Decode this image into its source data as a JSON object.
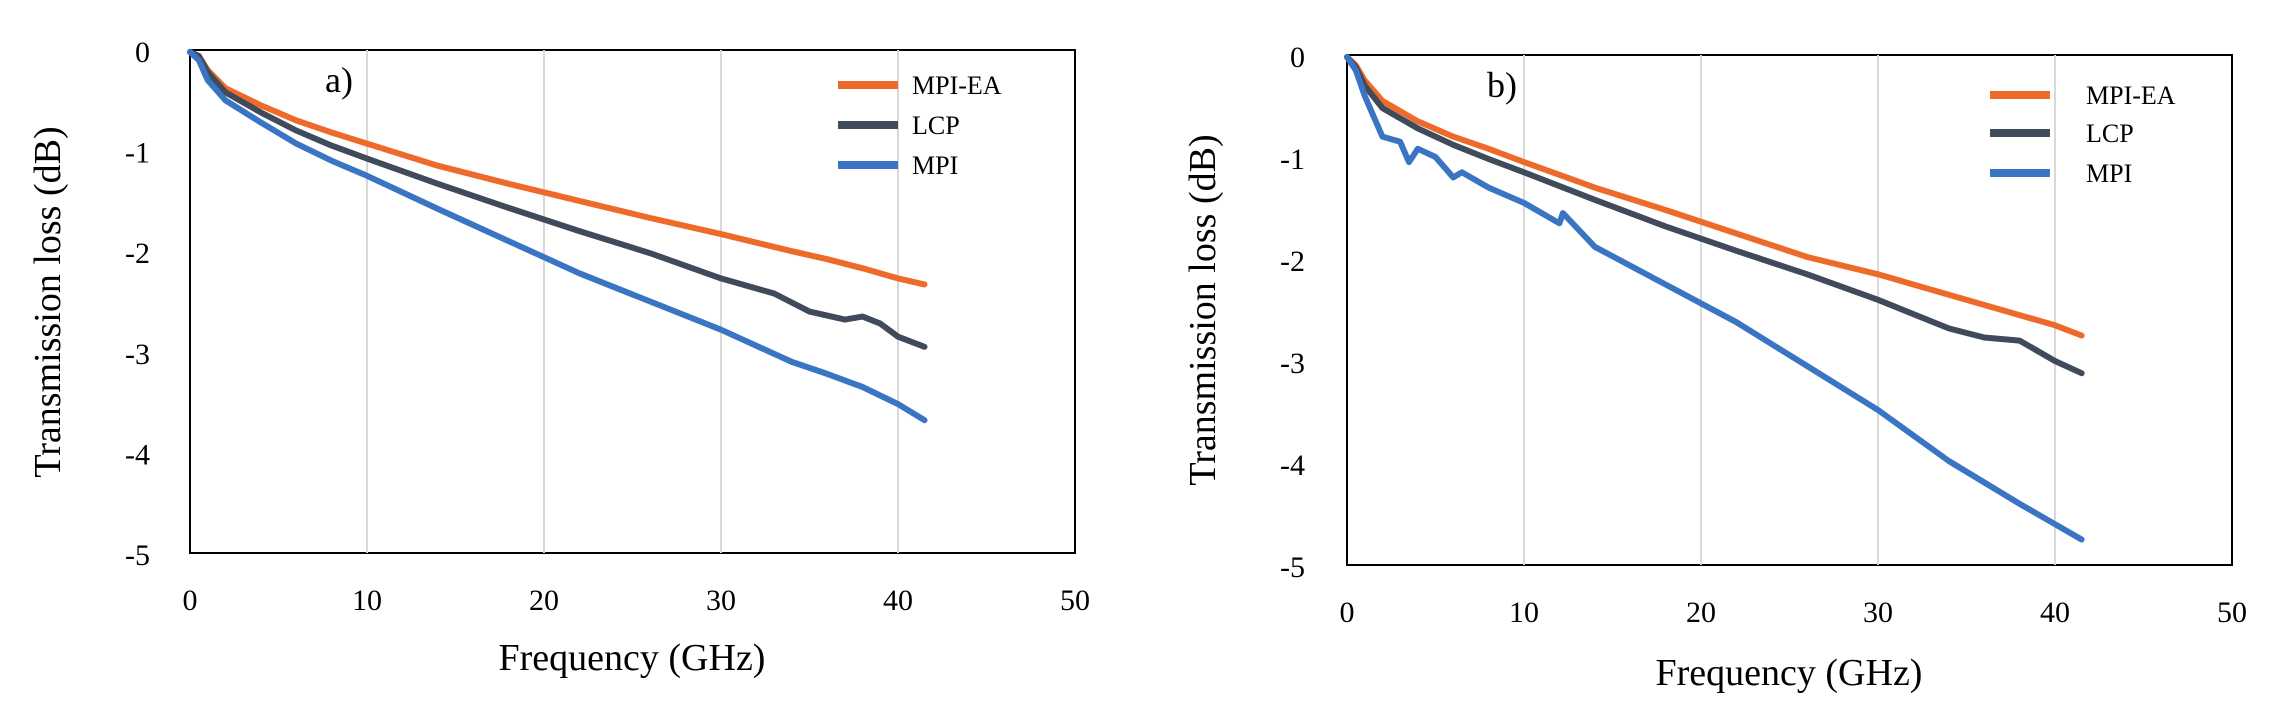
{
  "chart_data": [
    {
      "type": "line",
      "panel_label": "a)",
      "xlabel": "Frequency (GHz)",
      "ylabel": "Transmission loss (dB)",
      "xlim": [
        0,
        50
      ],
      "ylim": [
        -5,
        0
      ],
      "x_ticks": [
        "0",
        "10",
        "20",
        "30",
        "40",
        "50"
      ],
      "y_ticks": [
        "0",
        "-1",
        "-2",
        "-3",
        "-4",
        "-5"
      ],
      "grid": "vertical",
      "legend_position": "top-right",
      "series": [
        {
          "name": "MPI-EA",
          "color": "#ed6a2a",
          "x": [
            0,
            0.5,
            1,
            2,
            4,
            6,
            8,
            10,
            14,
            18,
            22,
            26,
            30,
            34,
            36,
            38,
            40,
            41.5
          ],
          "y": [
            -0.02,
            -0.06,
            -0.2,
            -0.38,
            -0.55,
            -0.7,
            -0.82,
            -0.93,
            -1.15,
            -1.33,
            -1.5,
            -1.67,
            -1.83,
            -2.0,
            -2.08,
            -2.17,
            -2.27,
            -2.33
          ]
        },
        {
          "name": "LCP",
          "color": "#3f4a5a",
          "x": [
            0,
            0.5,
            1,
            2,
            4,
            6,
            8,
            10,
            14,
            18,
            22,
            26,
            30,
            33,
            35,
            37,
            38,
            39,
            40,
            41.5
          ],
          "y": [
            -0.02,
            -0.06,
            -0.22,
            -0.42,
            -0.62,
            -0.8,
            -0.95,
            -1.08,
            -1.33,
            -1.57,
            -1.8,
            -2.02,
            -2.27,
            -2.42,
            -2.6,
            -2.68,
            -2.65,
            -2.72,
            -2.85,
            -2.95
          ]
        },
        {
          "name": "MPI",
          "color": "#3a75c4",
          "x": [
            0,
            0.5,
            1,
            2,
            4,
            6,
            8,
            10,
            14,
            18,
            22,
            26,
            30,
            34,
            36,
            38,
            40,
            41.5
          ],
          "y": [
            -0.02,
            -0.1,
            -0.3,
            -0.5,
            -0.72,
            -0.93,
            -1.1,
            -1.25,
            -1.58,
            -1.9,
            -2.22,
            -2.5,
            -2.78,
            -3.1,
            -3.22,
            -3.35,
            -3.52,
            -3.68
          ]
        }
      ]
    },
    {
      "type": "line",
      "panel_label": "b)",
      "xlabel": "Frequency (GHz)",
      "ylabel": "Transmission loss (dB)",
      "xlim": [
        0,
        50
      ],
      "ylim": [
        -5,
        0
      ],
      "x_ticks": [
        "0",
        "10",
        "20",
        "30",
        "40",
        "50"
      ],
      "y_ticks": [
        "0",
        "-1",
        "-2",
        "-3",
        "-4",
        "-5"
      ],
      "grid": "vertical",
      "legend_position": "top-right",
      "series": [
        {
          "name": "MPI-EA",
          "color": "#ed6a2a",
          "x": [
            0,
            0.5,
            1,
            2,
            4,
            6,
            8,
            10,
            14,
            18,
            22,
            26,
            30,
            34,
            38,
            40,
            41.5
          ],
          "y": [
            -0.02,
            -0.1,
            -0.25,
            -0.45,
            -0.65,
            -0.8,
            -0.92,
            -1.05,
            -1.3,
            -1.52,
            -1.75,
            -1.98,
            -2.15,
            -2.35,
            -2.55,
            -2.65,
            -2.75
          ]
        },
        {
          "name": "LCP",
          "color": "#3f4a5a",
          "x": [
            0,
            0.5,
            1,
            2,
            4,
            6,
            8,
            10,
            14,
            18,
            22,
            26,
            30,
            34,
            36,
            38,
            40,
            41.5
          ],
          "y": [
            -0.02,
            -0.12,
            -0.3,
            -0.52,
            -0.72,
            -0.88,
            -1.02,
            -1.15,
            -1.42,
            -1.68,
            -1.92,
            -2.15,
            -2.4,
            -2.68,
            -2.77,
            -2.8,
            -3.0,
            -3.12
          ]
        },
        {
          "name": "MPI",
          "color": "#3a75c4",
          "x": [
            0,
            0.5,
            1,
            1.5,
            2,
            3,
            3.5,
            4,
            5,
            6,
            6.5,
            8,
            10,
            12,
            12.2,
            14,
            18,
            22,
            26,
            30,
            34,
            38,
            40,
            41.5
          ],
          "y": [
            -0.02,
            -0.15,
            -0.4,
            -0.6,
            -0.8,
            -0.85,
            -1.05,
            -0.92,
            -1.0,
            -1.2,
            -1.15,
            -1.3,
            -1.45,
            -1.65,
            -1.55,
            -1.88,
            -2.25,
            -2.62,
            -3.05,
            -3.48,
            -3.98,
            -4.4,
            -4.6,
            -4.75
          ]
        }
      ]
    }
  ]
}
